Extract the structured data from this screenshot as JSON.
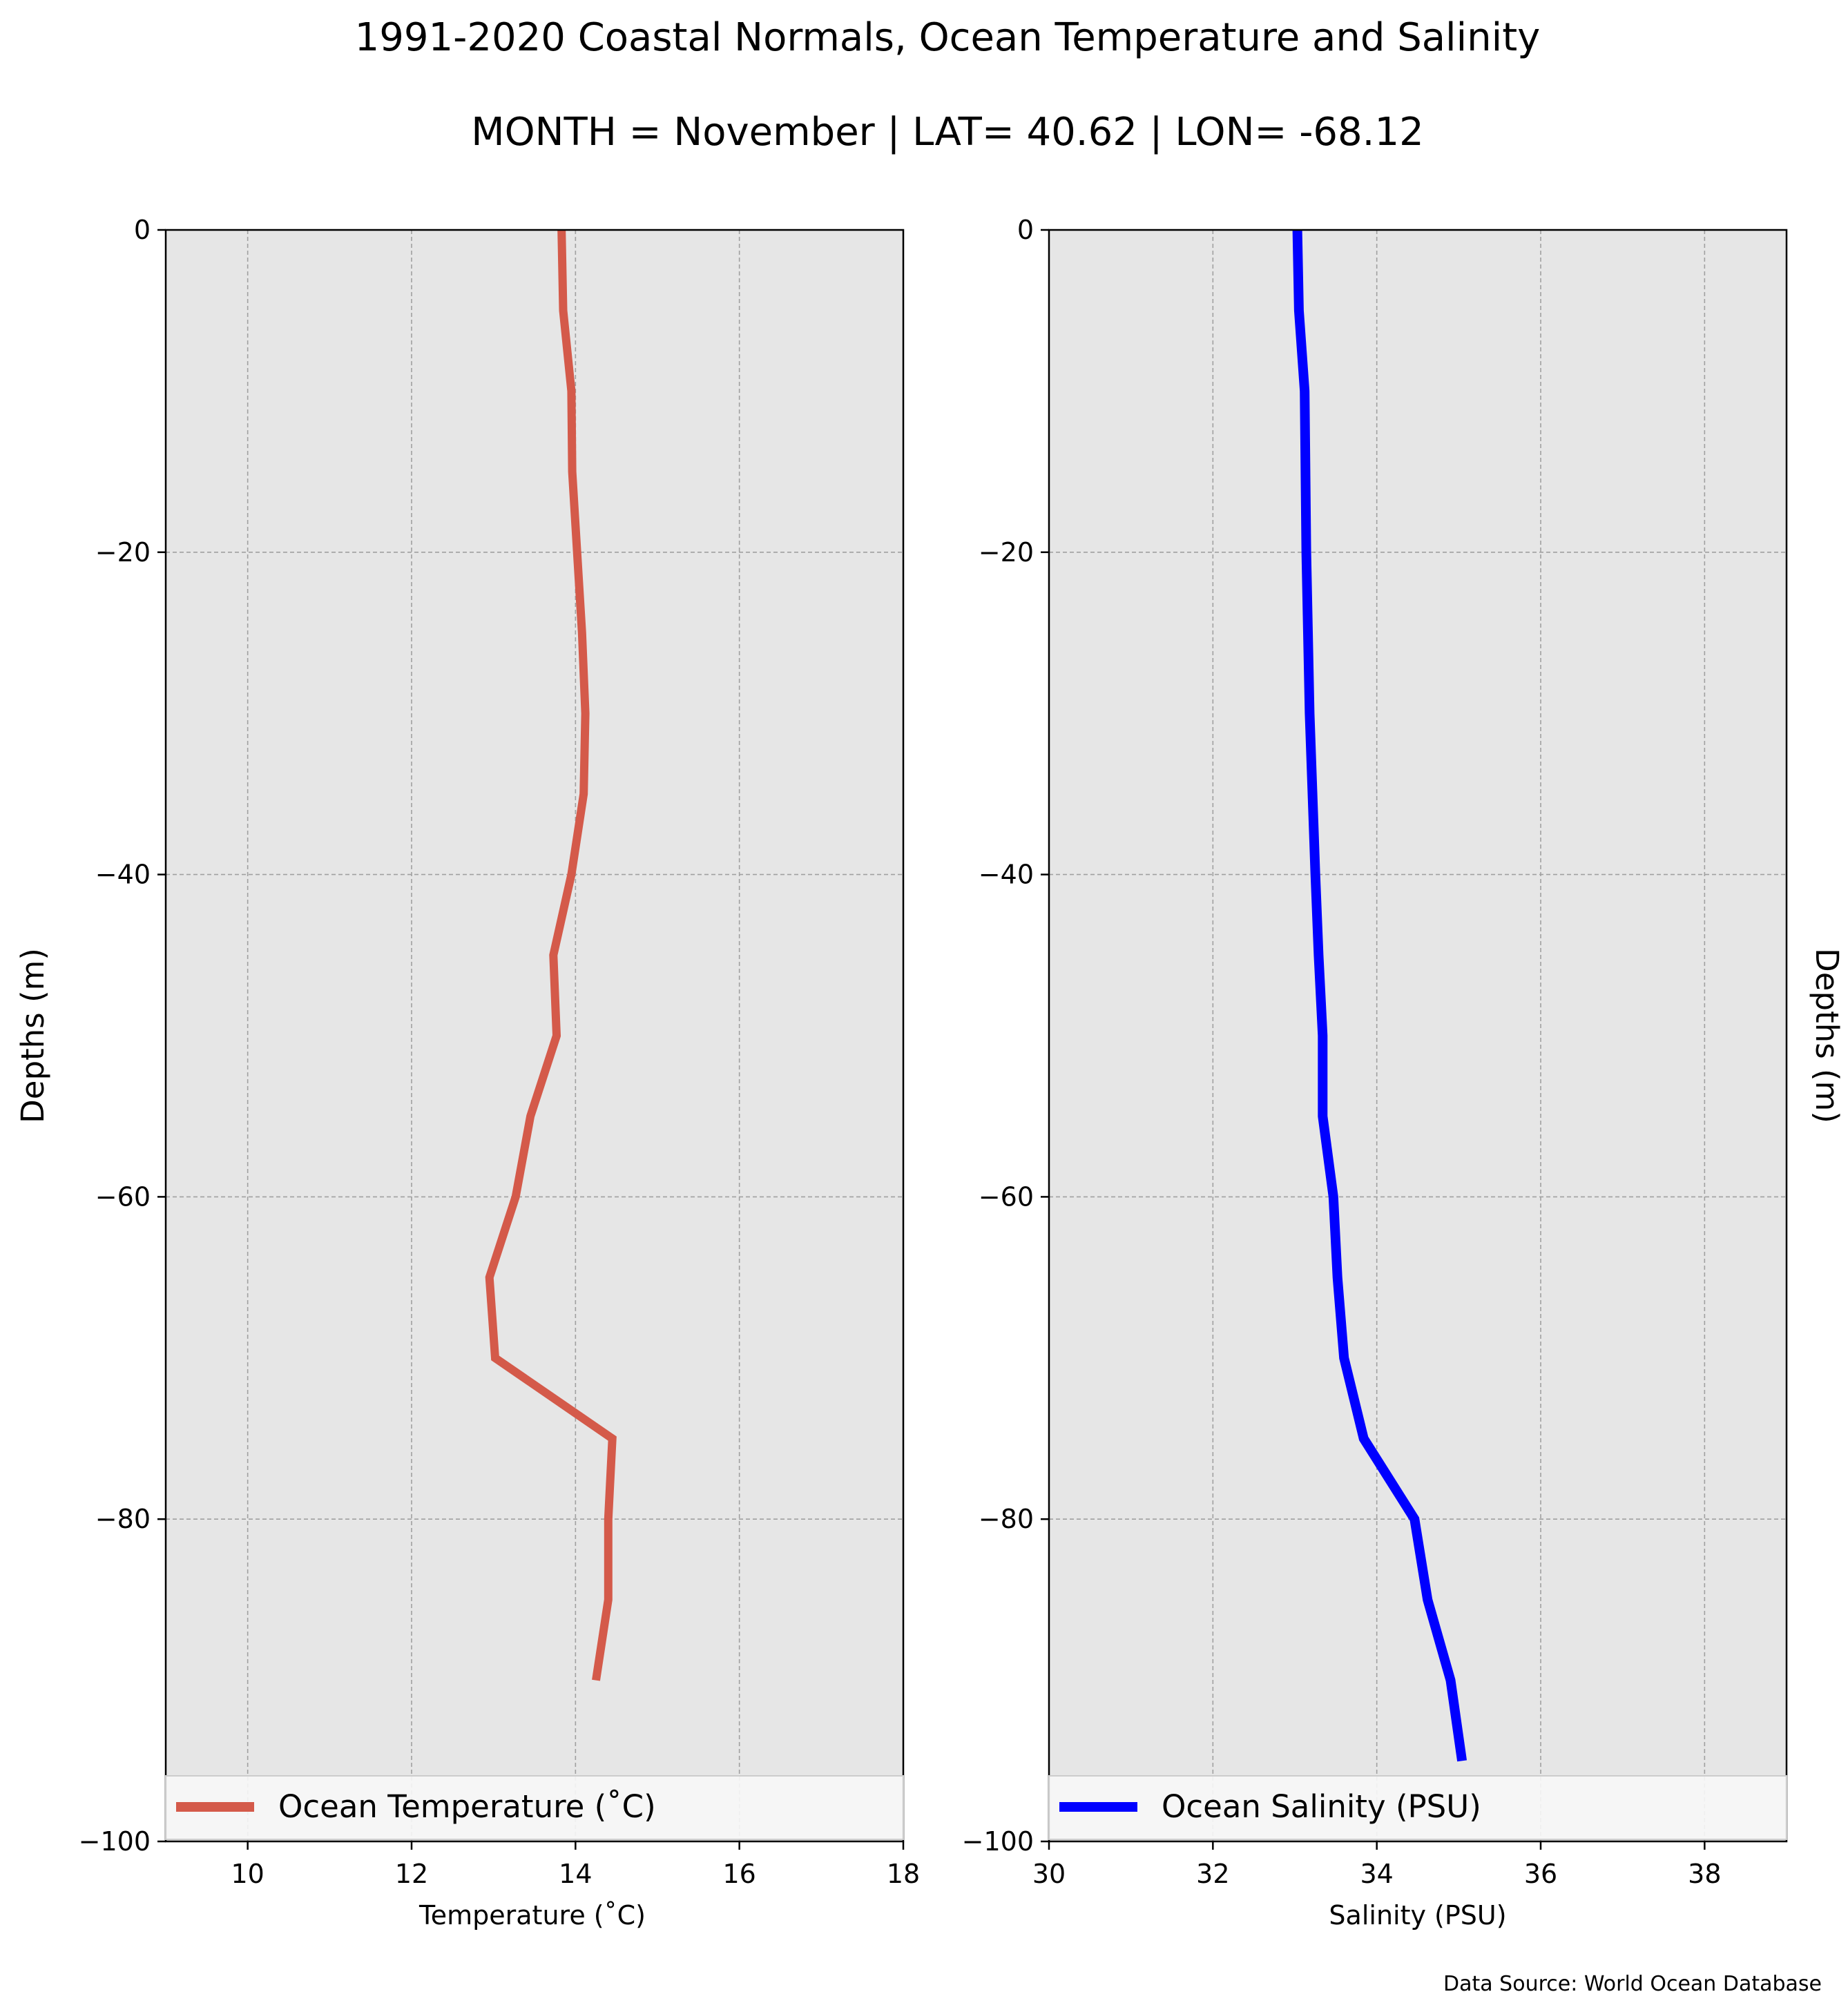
{
  "title": "1991-2020 Coastal Normals, Ocean Temperature and Salinity",
  "subtitle": "MONTH = November | LAT= 40.62 | LON= -68.12",
  "source": "Data Source: World Ocean Database",
  "colors": {
    "temperature": "#d45a4a",
    "salinity": "#0000ff",
    "plot_background": "#e6e6e6",
    "grid": "#a0a0a0"
  },
  "chart_data": [
    {
      "type": "line",
      "xlabel": "Temperature ($^\\circ$C)",
      "xlabel_display": "Temperature (˚C)",
      "ylabel": "Depths (m)",
      "xlim": [
        9,
        18
      ],
      "ylim": [
        -100,
        0
      ],
      "xticks": [
        10,
        12,
        14,
        16,
        18
      ],
      "xtick_labels": [
        "10",
        "12",
        "14",
        "16",
        "18"
      ],
      "yticks": [
        0,
        -20,
        -40,
        -60,
        -80,
        -100
      ],
      "ytick_labels": [
        "0",
        "−20",
        "−40",
        "−60",
        "−80",
        "−100"
      ],
      "grid": true,
      "legend": "bottom",
      "series": [
        {
          "name": "Ocean Temperature (˚C)",
          "color": "#d45a4a",
          "x": [
            13.83,
            13.85,
            13.95,
            13.96,
            14.08,
            14.12,
            14.1,
            13.95,
            13.73,
            13.77,
            13.45,
            13.27,
            12.95,
            13.02,
            14.45,
            14.4,
            14.4,
            14.25
          ],
          "y": [
            0,
            -5,
            -10,
            -15,
            -25,
            -30,
            -35,
            -40,
            -45,
            -50,
            -55,
            -60,
            -65,
            -70,
            -75,
            -80,
            -85,
            -90
          ]
        }
      ]
    },
    {
      "type": "line",
      "xlabel": "Salinity (PSU)",
      "ylabel": "Depths (m)",
      "xlim": [
        30,
        39
      ],
      "ylim": [
        -100,
        0
      ],
      "xticks": [
        30,
        32,
        34,
        36,
        38
      ],
      "xtick_labels": [
        "30",
        "32",
        "34",
        "36",
        "38"
      ],
      "yticks": [
        0,
        -20,
        -40,
        -60,
        -80,
        -100
      ],
      "ytick_labels": [
        "0",
        "−20",
        "−40",
        "−60",
        "−80",
        "−100"
      ],
      "grid": true,
      "legend": "bottom",
      "series": [
        {
          "name": "Ocean Salinity (PSU)",
          "color": "#0000ff",
          "x": [
            33.03,
            33.05,
            33.12,
            33.14,
            33.18,
            33.25,
            33.29,
            33.34,
            33.34,
            33.47,
            33.52,
            33.6,
            33.84,
            34.46,
            34.62,
            34.9,
            35.04
          ],
          "y": [
            0,
            -5,
            -10,
            -20,
            -30,
            -40,
            -45,
            -50,
            -55,
            -60,
            -65,
            -70,
            -75,
            -80,
            -85,
            -90,
            -95
          ]
        }
      ]
    }
  ]
}
